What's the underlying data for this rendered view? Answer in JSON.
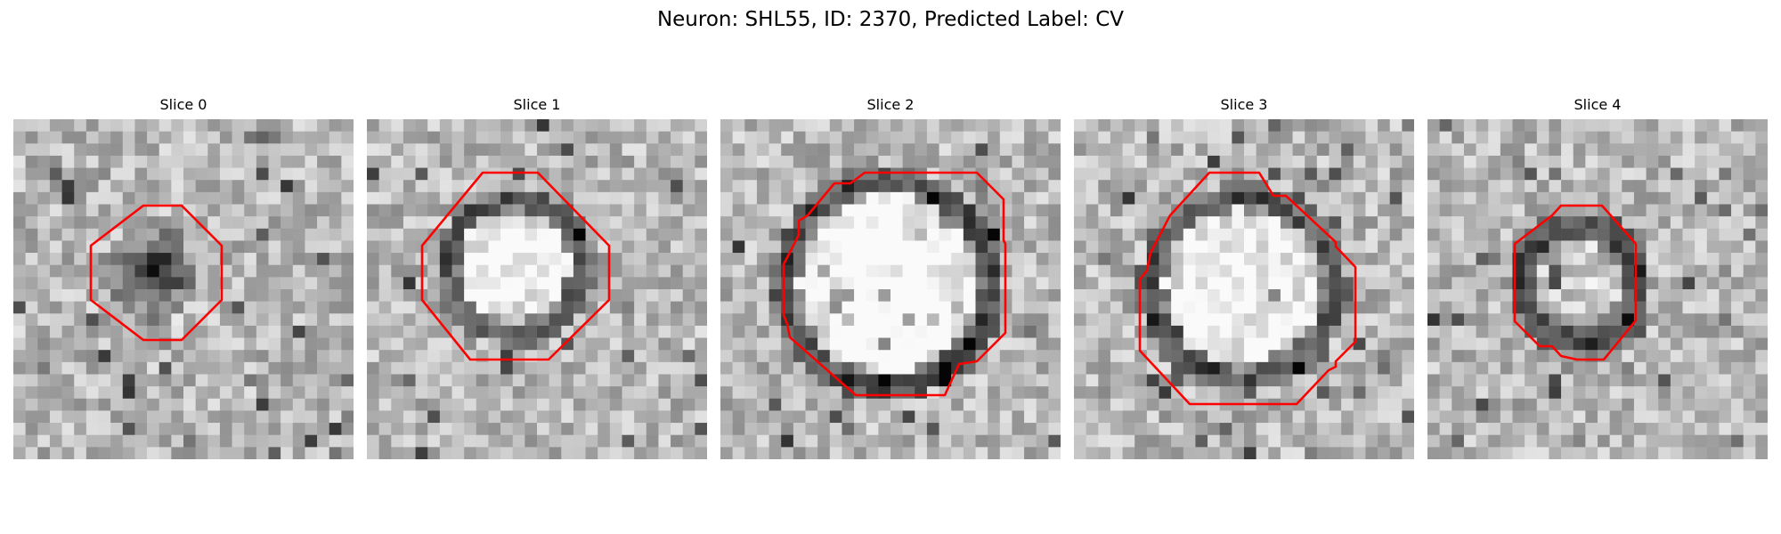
{
  "figure": {
    "suptitle": "Neuron: SHL55, ID: 2370, Predicted Label: CV"
  },
  "contour_color": "#ff0000",
  "colormap": "gray",
  "panels": [
    {
      "title": "Slice 0"
    },
    {
      "title": "Slice 1"
    },
    {
      "title": "Slice 2"
    },
    {
      "title": "Slice 3"
    },
    {
      "title": "Slice 4"
    }
  ]
}
